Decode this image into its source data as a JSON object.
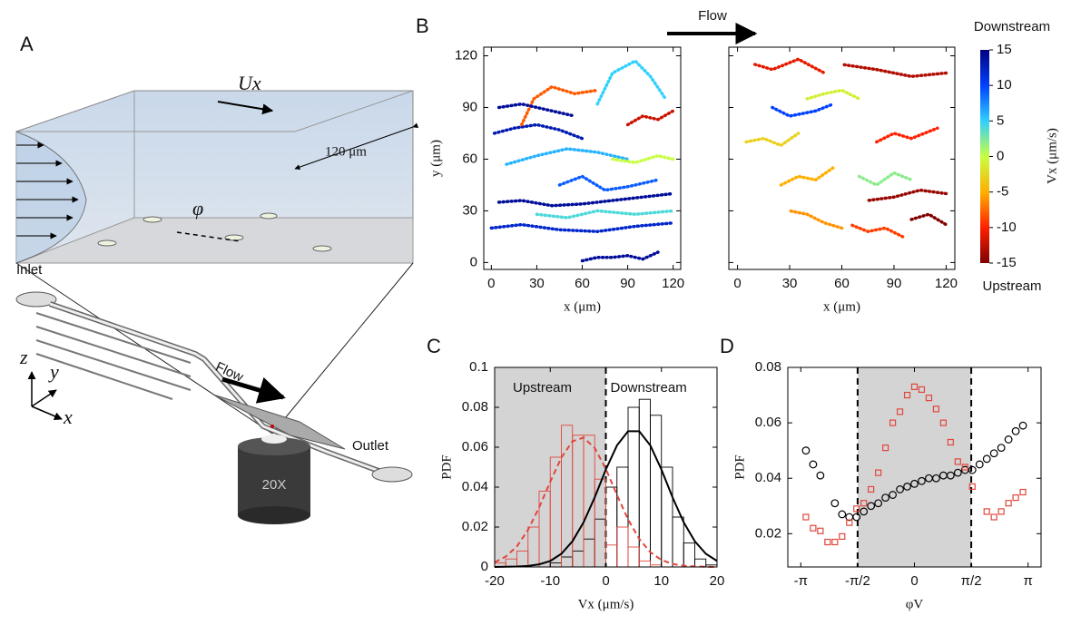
{
  "diagram": {
    "label": "A",
    "velocity": "Ux",
    "width": "120 μm",
    "angle": "φ",
    "inlet": "Inlet",
    "flow": "Flow",
    "outlet": "Outlet",
    "axis_z": "z",
    "axis_y": "y",
    "axis_x": "x",
    "objective": "20X"
  },
  "chart_data": [
    {
      "type": "trajectory",
      "label": "B",
      "xlabel": "x (μm)",
      "ylabel": "y (μm)",
      "annotation": "Flow",
      "xlim": [
        -5,
        125
      ],
      "ylim": [
        -4,
        125
      ],
      "xticks": [
        0,
        30,
        60,
        90,
        120
      ],
      "yticks": [
        0,
        30,
        60,
        90,
        120
      ],
      "tracks": [
        {
          "x": [
            5,
            20,
            40,
            60,
            80,
            100,
            120
          ],
          "y": [
            35,
            36,
            33,
            34,
            36,
            38,
            40
          ],
          "vx": 14
        },
        {
          "x": [
            0,
            20,
            45,
            70,
            95,
            120
          ],
          "y": [
            20,
            22,
            19,
            18,
            21,
            23
          ],
          "vx": 12
        },
        {
          "x": [
            2,
            15,
            30,
            45,
            60
          ],
          "y": [
            75,
            78,
            80,
            77,
            72
          ],
          "vx": 13
        },
        {
          "x": [
            10,
            30,
            50,
            70,
            90
          ],
          "y": [
            57,
            62,
            66,
            64,
            60
          ],
          "vx": 6
        },
        {
          "x": [
            60,
            70,
            80,
            90,
            100,
            110
          ],
          "y": [
            1,
            3,
            3,
            4,
            2,
            6
          ],
          "vx": 14
        },
        {
          "x": [
            20,
            28,
            40,
            55,
            70
          ],
          "y": [
            80,
            95,
            102,
            98,
            100
          ],
          "vx": -8
        },
        {
          "x": [
            70,
            80,
            95,
            105,
            115
          ],
          "y": [
            92,
            110,
            117,
            108,
            95
          ],
          "vx": 5
        },
        {
          "x": [
            30,
            50,
            70,
            95,
            120
          ],
          "y": [
            28,
            26,
            30,
            28,
            30
          ],
          "vx": 4
        },
        {
          "x": [
            90,
            100,
            110,
            120
          ],
          "y": [
            80,
            85,
            83,
            88
          ],
          "vx": -12
        },
        {
          "x": [
            5,
            20,
            40,
            55
          ],
          "y": [
            90,
            92,
            88,
            85
          ],
          "vx": 14
        },
        {
          "x": [
            45,
            60,
            75,
            90,
            110
          ],
          "y": [
            45,
            50,
            42,
            44,
            48
          ],
          "vx": 9
        },
        {
          "x": [
            80,
            95,
            110,
            120
          ],
          "y": [
            60,
            58,
            62,
            60
          ],
          "vx": 0
        }
      ]
    },
    {
      "type": "trajectory",
      "xlabel": "x (μm)",
      "xlim": [
        -5,
        125
      ],
      "ylim": [
        -4,
        125
      ],
      "xticks": [
        0,
        30,
        60,
        90,
        120
      ],
      "yticks": [
        0,
        30,
        60,
        90,
        120
      ],
      "colorbar": {
        "label": "Vx (μm/s)",
        "top_label": "Downstream",
        "bottom_label": "Upstream",
        "lim": [
          -15,
          15
        ],
        "ticks": [
          15,
          10,
          5,
          0,
          -5,
          -10,
          -15
        ],
        "colors": [
          "#7f0000",
          "#ff2000",
          "#ffb000",
          "#c8ff40",
          "#30d0ff",
          "#0040ff",
          "#00007f"
        ]
      },
      "tracks": [
        {
          "x": [
            120,
            100,
            80,
            60
          ],
          "y": [
            110,
            108,
            112,
            115
          ],
          "vx": -13
        },
        {
          "x": [
            10,
            20,
            35,
            50
          ],
          "y": [
            115,
            112,
            118,
            110
          ],
          "vx": -11
        },
        {
          "x": [
            120,
            105,
            90,
            75
          ],
          "y": [
            40,
            42,
            38,
            36
          ],
          "vx": -14
        },
        {
          "x": [
            60,
            50,
            40,
            30
          ],
          "y": [
            20,
            23,
            28,
            30
          ],
          "vx": -6
        },
        {
          "x": [
            95,
            85,
            75,
            65
          ],
          "y": [
            15,
            20,
            18,
            22
          ],
          "vx": -9
        },
        {
          "x": [
            5,
            15,
            25,
            35
          ],
          "y": [
            70,
            72,
            68,
            75
          ],
          "vx": -3
        },
        {
          "x": [
            40,
            50,
            60,
            70
          ],
          "y": [
            95,
            98,
            100,
            95
          ],
          "vx": -1
        },
        {
          "x": [
            20,
            30,
            45,
            55
          ],
          "y": [
            90,
            85,
            88,
            92
          ],
          "vx": 10
        },
        {
          "x": [
            80,
            90,
            100,
            115
          ],
          "y": [
            70,
            75,
            72,
            78
          ],
          "vx": -10
        },
        {
          "x": [
            100,
            110,
            120
          ],
          "y": [
            25,
            28,
            22
          ],
          "vx": -15
        },
        {
          "x": [
            25,
            35,
            45,
            55
          ],
          "y": [
            45,
            50,
            48,
            55
          ],
          "vx": -5
        },
        {
          "x": [
            70,
            80,
            90,
            100
          ],
          "y": [
            50,
            45,
            52,
            48
          ],
          "vx": 2
        }
      ]
    },
    {
      "type": "histogram",
      "label": "C",
      "xlabel": "Vx (μm/s)",
      "ylabel": "PDF",
      "region_left": "Upstream",
      "region_right": "Downstream",
      "xlim": [
        -20,
        20
      ],
      "ylim": [
        0,
        0.1
      ],
      "xticks": [
        -20,
        -10,
        0,
        10,
        20
      ],
      "yticks": [
        0,
        0.02,
        0.04,
        0.06,
        0.08,
        0.1
      ],
      "shaded_range": [
        -20,
        0
      ],
      "bins": [
        -20,
        -18,
        -16,
        -14,
        -12,
        -10,
        -8,
        -6,
        -4,
        -2,
        0,
        2,
        4,
        6,
        8,
        10,
        12,
        14,
        16,
        18,
        20
      ],
      "series": [
        {
          "color": "#000000",
          "values": [
            0,
            0,
            0,
            0,
            0,
            0.002,
            0.005,
            0.008,
            0.014,
            0.024,
            0.04,
            0.05,
            0.08,
            0.084,
            0.076,
            0.05,
            0.025,
            0.012,
            0.004,
            0.001
          ]
        },
        {
          "color": "#e0473c",
          "values": [
            0.002,
            0.004,
            0.008,
            0.02,
            0.038,
            0.055,
            0.071,
            0.066,
            0.066,
            0.044,
            0.011,
            0.02,
            0.01,
            0.003,
            0.001,
            0,
            0,
            0,
            0,
            0
          ]
        }
      ],
      "curve_x": [
        -20,
        -18,
        -16,
        -14,
        -12,
        -10,
        -8,
        -6,
        -4,
        -2,
        0,
        2,
        4,
        6,
        8,
        10,
        12,
        14,
        16,
        18,
        20
      ],
      "curves": [
        {
          "color": "#000000",
          "dashed": false,
          "values": [
            0,
            0.0001,
            0.0002,
            0.0005,
            0.0013,
            0.003,
            0.0066,
            0.0129,
            0.0224,
            0.0349,
            0.0488,
            0.0609,
            0.068,
            0.068,
            0.0609,
            0.0488,
            0.0349,
            0.0224,
            0.0129,
            0.0066,
            0.003
          ]
        },
        {
          "color": "#e0473c",
          "dashed": true,
          "values": [
            0.0023,
            0.0052,
            0.0103,
            0.0186,
            0.0298,
            0.0427,
            0.0548,
            0.063,
            0.0648,
            0.0596,
            0.0491,
            0.0361,
            0.0238,
            0.0141,
            0.0074,
            0.0035,
            0.0015,
            0.0006,
            0.0003,
            0.0001,
            0
          ]
        }
      ]
    },
    {
      "type": "scatter",
      "label": "D",
      "xlabel": "φV",
      "ylabel": "PDF",
      "xlim": [
        -3.5,
        3.5
      ],
      "ylim": [
        0.008,
        0.08
      ],
      "yticks": [
        0.02,
        0.04,
        0.06,
        0.08
      ],
      "xticks": [
        {
          "value": -3.1416,
          "label": "-π"
        },
        {
          "value": -1.5708,
          "label": "-π/2"
        },
        {
          "value": 0,
          "label": "0"
        },
        {
          "value": 1.5708,
          "label": "π/2"
        },
        {
          "value": 3.1416,
          "label": "π"
        }
      ],
      "shaded_range": [
        -1.5708,
        1.5708
      ],
      "x": [
        -3,
        -2.8,
        -2.6,
        -2.4,
        -2.2,
        -2,
        -1.8,
        -1.6,
        -1.4,
        -1.2,
        -1,
        -0.8,
        -0.6,
        -0.4,
        -0.2,
        0,
        0.2,
        0.4,
        0.6,
        0.8,
        1,
        1.2,
        1.4,
        1.6,
        1.8,
        2,
        2.2,
        2.4,
        2.6,
        2.8,
        3
      ],
      "series": [
        {
          "marker": "circle",
          "color": "#000000",
          "values": [
            0.05,
            0.045,
            0.041,
            null,
            0.031,
            0.027,
            0.026,
            0.026,
            0.028,
            0.03,
            0.031,
            0.033,
            0.034,
            0.036,
            0.037,
            0.038,
            0.039,
            0.04,
            0.04,
            0.041,
            0.041,
            0.042,
            0.043,
            0.043,
            0.045,
            0.047,
            0.049,
            0.051,
            0.054,
            0.057,
            0.059
          ]
        },
        {
          "marker": "square",
          "color": "#e0473c",
          "values": [
            0.026,
            0.022,
            0.021,
            0.017,
            0.017,
            0.019,
            0.024,
            0.029,
            0.031,
            0.036,
            0.042,
            0.051,
            0.06,
            0.064,
            0.07,
            0.073,
            0.072,
            0.069,
            0.065,
            0.06,
            0.053,
            0.046,
            0.044,
            0.037,
            null,
            0.028,
            0.026,
            0.028,
            0.031,
            0.033,
            0.035
          ]
        }
      ]
    }
  ]
}
